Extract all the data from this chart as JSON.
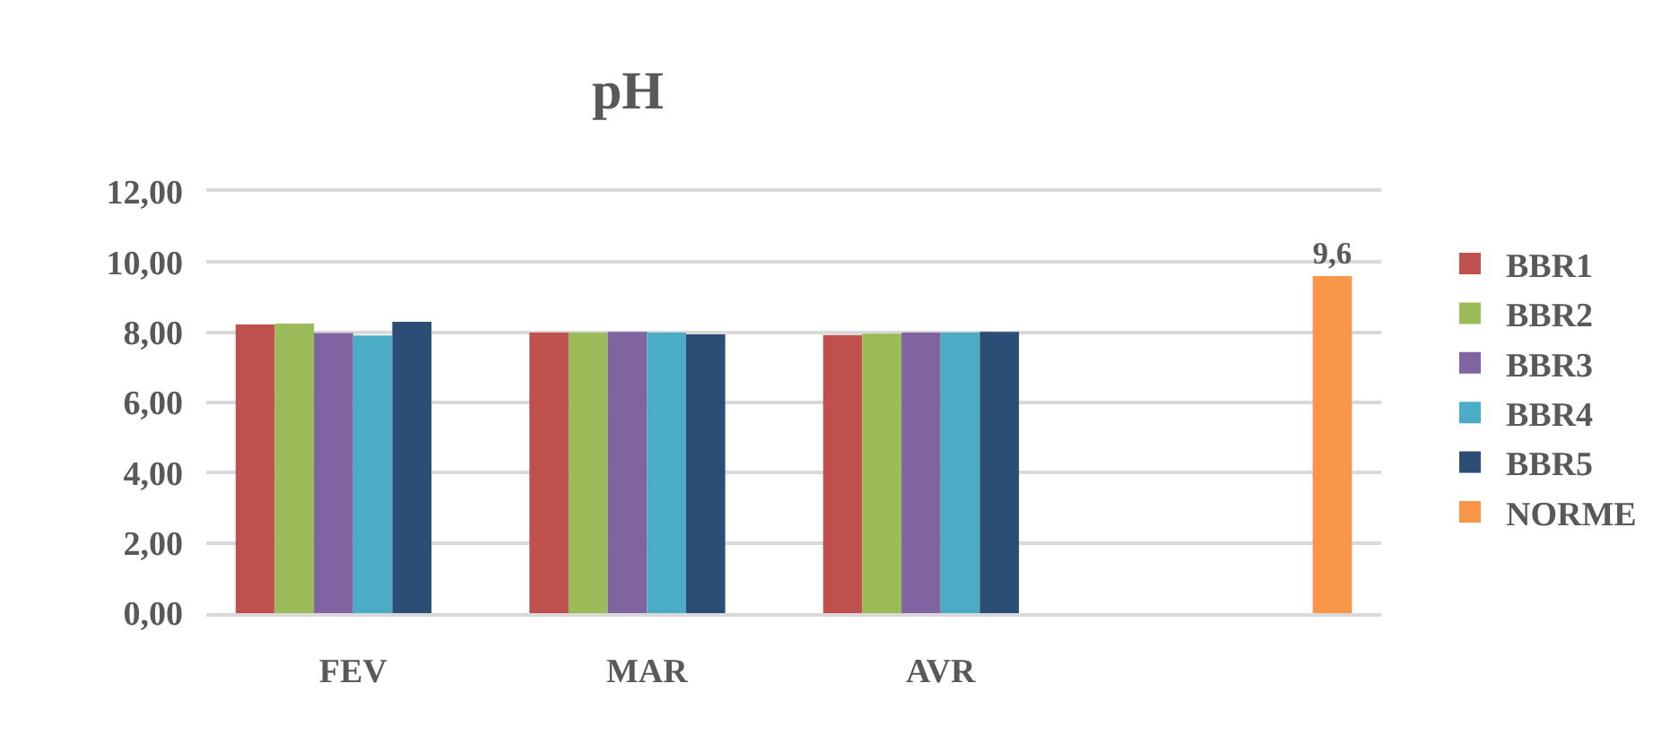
{
  "chart_data": {
    "type": "bar",
    "title": "pH",
    "categories": [
      "FEV",
      "MAR",
      "AVR",
      null
    ],
    "series": [
      {
        "name": "BBR1",
        "color": "#c0504d",
        "values": [
          8.22,
          7.99,
          7.92,
          null
        ]
      },
      {
        "name": "BBR2",
        "color": "#9bbb59",
        "values": [
          8.25,
          7.99,
          7.96,
          null
        ]
      },
      {
        "name": "BBR3",
        "color": "#8064a2",
        "values": [
          7.98,
          8.01,
          7.99,
          null
        ]
      },
      {
        "name": "BBR4",
        "color": "#4bacc6",
        "values": [
          7.91,
          7.99,
          7.99,
          null
        ]
      },
      {
        "name": "BBR5",
        "color": "#2c4d75",
        "values": [
          8.3,
          7.94,
          8.01,
          null
        ]
      },
      {
        "name": "NORME",
        "color": "#f79646",
        "values": [
          null,
          null,
          null,
          9.6
        ],
        "value_labels": [
          null,
          null,
          null,
          "9,6"
        ]
      }
    ],
    "ylim": [
      0,
      12
    ],
    "yticks": [
      {
        "value": 0,
        "label": "0,00"
      },
      {
        "value": 2,
        "label": "2,00"
      },
      {
        "value": 4,
        "label": "4,00"
      },
      {
        "value": 6,
        "label": "6,00"
      },
      {
        "value": 8,
        "label": "8,00"
      },
      {
        "value": 10,
        "label": "10,00"
      },
      {
        "value": 12,
        "label": "12,00"
      }
    ],
    "grid": "y",
    "legend": "right"
  }
}
